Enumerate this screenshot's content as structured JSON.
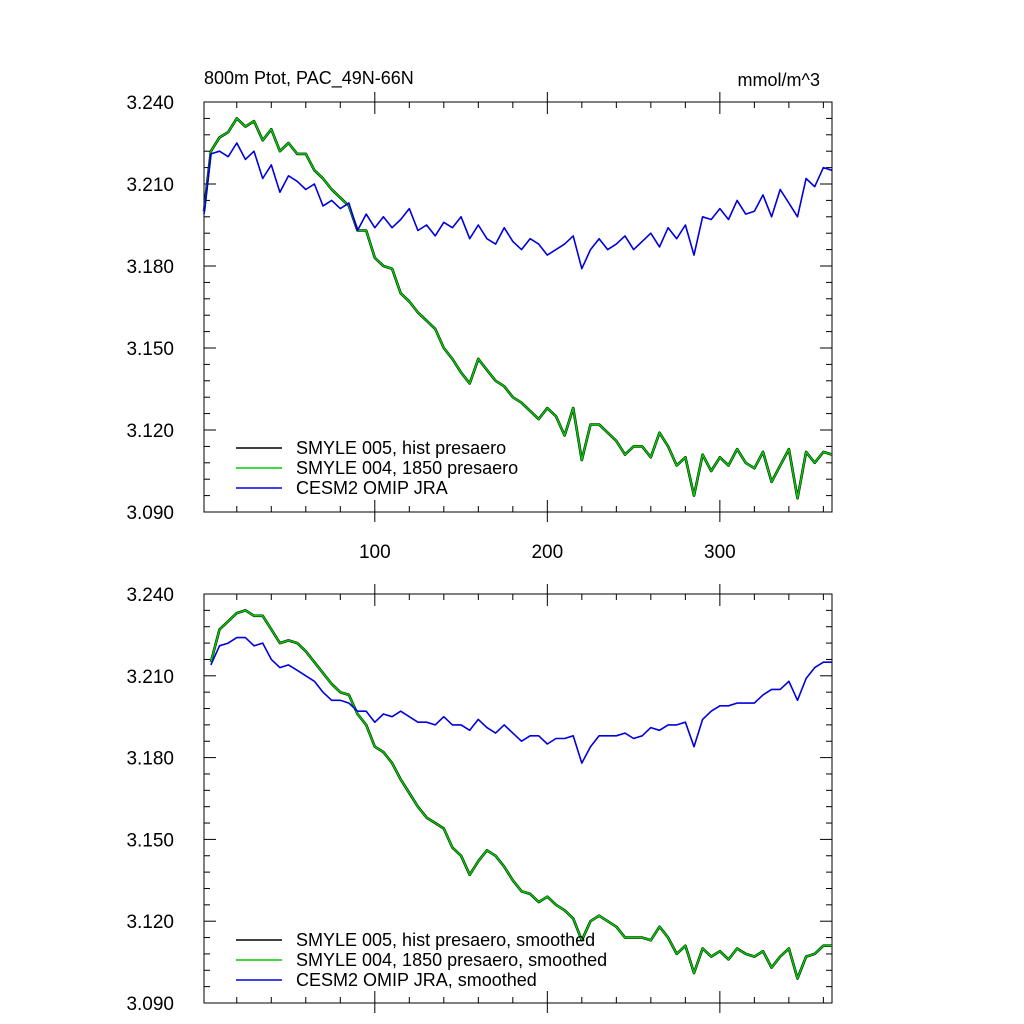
{
  "figure": {
    "title": "800m Ptot, PAC_49N-66N",
    "units": "mmol/m^3"
  },
  "chart_data": [
    {
      "type": "line",
      "name": "top-panel",
      "xlim": [
        1,
        365
      ],
      "ylim": [
        3.09,
        3.24
      ],
      "xticks": [
        100,
        200,
        300
      ],
      "yticks": [
        3.09,
        3.12,
        3.15,
        3.18,
        3.21,
        3.24
      ],
      "ytick_labels": [
        "3.090",
        "3.120",
        "3.150",
        "3.180",
        "3.210",
        "3.240"
      ],
      "xtick_labels": [
        "100",
        "200",
        "300"
      ],
      "legend_position": "bottom-left",
      "series": [
        {
          "name": "SMYLE 005, hist presaero",
          "color": "#000000",
          "x": [
            1,
            5,
            10,
            15,
            20,
            25,
            30,
            35,
            40,
            45,
            50,
            55,
            60,
            65,
            70,
            75,
            80,
            85,
            90,
            95,
            100,
            105,
            110,
            115,
            120,
            125,
            130,
            135,
            140,
            145,
            150,
            155,
            160,
            165,
            170,
            175,
            180,
            185,
            190,
            195,
            200,
            205,
            210,
            215,
            220,
            225,
            230,
            235,
            240,
            245,
            250,
            255,
            260,
            265,
            270,
            275,
            280,
            285,
            290,
            295,
            300,
            305,
            310,
            315,
            320,
            325,
            330,
            335,
            340,
            345,
            350,
            355,
            360,
            365
          ],
          "y": [
            3.2,
            3.222,
            3.227,
            3.229,
            3.234,
            3.231,
            3.233,
            3.226,
            3.23,
            3.222,
            3.225,
            3.221,
            3.221,
            3.215,
            3.212,
            3.208,
            3.205,
            3.202,
            3.193,
            3.193,
            3.183,
            3.18,
            3.179,
            3.17,
            3.167,
            3.163,
            3.16,
            3.157,
            3.15,
            3.146,
            3.141,
            3.137,
            3.146,
            3.142,
            3.138,
            3.136,
            3.132,
            3.13,
            3.127,
            3.124,
            3.128,
            3.125,
            3.118,
            3.128,
            3.109,
            3.122,
            3.122,
            3.119,
            3.116,
            3.111,
            3.114,
            3.114,
            3.11,
            3.119,
            3.114,
            3.107,
            3.11,
            3.096,
            3.111,
            3.105,
            3.11,
            3.107,
            3.113,
            3.108,
            3.106,
            3.112,
            3.101,
            3.107,
            3.113,
            3.095,
            3.112,
            3.108,
            3.112,
            3.111
          ]
        },
        {
          "name": "SMYLE 004, 1850 presaero",
          "color": "#00cc00",
          "x": [
            1,
            5,
            10,
            15,
            20,
            25,
            30,
            35,
            40,
            45,
            50,
            55,
            60,
            65,
            70,
            75,
            80,
            85,
            90,
            95,
            100,
            105,
            110,
            115,
            120,
            125,
            130,
            135,
            140,
            145,
            150,
            155,
            160,
            165,
            170,
            175,
            180,
            185,
            190,
            195,
            200,
            205,
            210,
            215,
            220,
            225,
            230,
            235,
            240,
            245,
            250,
            255,
            260,
            265,
            270,
            275,
            280,
            285,
            290,
            295,
            300,
            305,
            310,
            315,
            320,
            325,
            330,
            335,
            340,
            345,
            350,
            355,
            360,
            365
          ],
          "y": [
            3.2,
            3.222,
            3.227,
            3.229,
            3.234,
            3.231,
            3.233,
            3.226,
            3.23,
            3.222,
            3.225,
            3.221,
            3.221,
            3.215,
            3.212,
            3.208,
            3.205,
            3.202,
            3.193,
            3.193,
            3.183,
            3.18,
            3.179,
            3.17,
            3.167,
            3.163,
            3.16,
            3.157,
            3.15,
            3.146,
            3.141,
            3.137,
            3.146,
            3.142,
            3.138,
            3.136,
            3.132,
            3.13,
            3.127,
            3.124,
            3.128,
            3.125,
            3.118,
            3.128,
            3.109,
            3.122,
            3.122,
            3.119,
            3.116,
            3.111,
            3.114,
            3.114,
            3.11,
            3.119,
            3.114,
            3.107,
            3.11,
            3.096,
            3.111,
            3.105,
            3.11,
            3.107,
            3.113,
            3.108,
            3.106,
            3.112,
            3.101,
            3.107,
            3.113,
            3.095,
            3.112,
            3.108,
            3.112,
            3.111
          ]
        },
        {
          "name": "CESM2 OMIP JRA",
          "color": "#0000dd",
          "x": [
            1,
            5,
            10,
            15,
            20,
            25,
            30,
            35,
            40,
            45,
            50,
            55,
            60,
            65,
            70,
            75,
            80,
            85,
            90,
            95,
            100,
            105,
            110,
            115,
            120,
            125,
            130,
            135,
            140,
            145,
            150,
            155,
            160,
            165,
            170,
            175,
            180,
            185,
            190,
            195,
            200,
            205,
            210,
            215,
            220,
            225,
            230,
            235,
            240,
            245,
            250,
            255,
            260,
            265,
            270,
            275,
            280,
            285,
            290,
            295,
            300,
            305,
            310,
            315,
            320,
            325,
            330,
            335,
            340,
            345,
            350,
            355,
            360,
            365
          ],
          "y": [
            3.199,
            3.221,
            3.222,
            3.22,
            3.225,
            3.219,
            3.222,
            3.212,
            3.217,
            3.207,
            3.213,
            3.211,
            3.208,
            3.21,
            3.202,
            3.204,
            3.201,
            3.203,
            3.193,
            3.199,
            3.194,
            3.198,
            3.194,
            3.197,
            3.201,
            3.193,
            3.195,
            3.191,
            3.196,
            3.194,
            3.198,
            3.19,
            3.195,
            3.19,
            3.188,
            3.194,
            3.189,
            3.186,
            3.19,
            3.188,
            3.184,
            3.186,
            3.188,
            3.191,
            3.179,
            3.186,
            3.19,
            3.186,
            3.188,
            3.191,
            3.186,
            3.189,
            3.192,
            3.187,
            3.194,
            3.19,
            3.195,
            3.184,
            3.198,
            3.197,
            3.201,
            3.197,
            3.204,
            3.199,
            3.2,
            3.206,
            3.198,
            3.208,
            3.203,
            3.198,
            3.212,
            3.209,
            3.216,
            3.215
          ]
        }
      ]
    },
    {
      "type": "line",
      "name": "bottom-panel",
      "xlim": [
        1,
        365
      ],
      "ylim": [
        3.09,
        3.24
      ],
      "xticks": [
        100,
        200,
        300
      ],
      "yticks": [
        3.09,
        3.12,
        3.15,
        3.18,
        3.21,
        3.24
      ],
      "ytick_labels": [
        "3.090",
        "3.120",
        "3.150",
        "3.180",
        "3.210",
        "3.240"
      ],
      "legend_position": "bottom-left",
      "series": [
        {
          "name": "SMYLE 005, hist presaero, smoothed",
          "color": "#000000",
          "x": [
            5,
            10,
            15,
            20,
            25,
            30,
            35,
            40,
            45,
            50,
            55,
            60,
            65,
            70,
            75,
            80,
            85,
            90,
            95,
            100,
            105,
            110,
            115,
            120,
            125,
            130,
            135,
            140,
            145,
            150,
            155,
            160,
            165,
            170,
            175,
            180,
            185,
            190,
            195,
            200,
            205,
            210,
            215,
            220,
            225,
            230,
            235,
            240,
            245,
            250,
            255,
            260,
            265,
            270,
            275,
            280,
            285,
            290,
            295,
            300,
            305,
            310,
            315,
            320,
            325,
            330,
            335,
            340,
            345,
            350,
            355,
            360,
            365
          ],
          "y": [
            3.215,
            3.227,
            3.23,
            3.233,
            3.234,
            3.232,
            3.232,
            3.227,
            3.222,
            3.223,
            3.222,
            3.219,
            3.215,
            3.211,
            3.207,
            3.204,
            3.203,
            3.196,
            3.192,
            3.184,
            3.182,
            3.178,
            3.172,
            3.167,
            3.162,
            3.158,
            3.156,
            3.154,
            3.147,
            3.144,
            3.137,
            3.142,
            3.146,
            3.144,
            3.14,
            3.135,
            3.131,
            3.13,
            3.127,
            3.129,
            3.126,
            3.124,
            3.121,
            3.113,
            3.12,
            3.122,
            3.12,
            3.118,
            3.114,
            3.114,
            3.114,
            3.113,
            3.118,
            3.114,
            3.108,
            3.111,
            3.101,
            3.11,
            3.107,
            3.109,
            3.106,
            3.11,
            3.108,
            3.107,
            3.109,
            3.103,
            3.107,
            3.11,
            3.099,
            3.107,
            3.108,
            3.111,
            3.111
          ]
        },
        {
          "name": "SMYLE 004, 1850 presaero, smoothed",
          "color": "#00cc00",
          "x": [
            5,
            10,
            15,
            20,
            25,
            30,
            35,
            40,
            45,
            50,
            55,
            60,
            65,
            70,
            75,
            80,
            85,
            90,
            95,
            100,
            105,
            110,
            115,
            120,
            125,
            130,
            135,
            140,
            145,
            150,
            155,
            160,
            165,
            170,
            175,
            180,
            185,
            190,
            195,
            200,
            205,
            210,
            215,
            220,
            225,
            230,
            235,
            240,
            245,
            250,
            255,
            260,
            265,
            270,
            275,
            280,
            285,
            290,
            295,
            300,
            305,
            310,
            315,
            320,
            325,
            330,
            335,
            340,
            345,
            350,
            355,
            360,
            365
          ],
          "y": [
            3.215,
            3.227,
            3.23,
            3.233,
            3.234,
            3.232,
            3.232,
            3.227,
            3.222,
            3.223,
            3.222,
            3.219,
            3.215,
            3.211,
            3.207,
            3.204,
            3.203,
            3.196,
            3.192,
            3.184,
            3.182,
            3.178,
            3.172,
            3.167,
            3.162,
            3.158,
            3.156,
            3.154,
            3.147,
            3.144,
            3.137,
            3.142,
            3.146,
            3.144,
            3.14,
            3.135,
            3.131,
            3.13,
            3.127,
            3.129,
            3.126,
            3.124,
            3.121,
            3.113,
            3.12,
            3.122,
            3.12,
            3.118,
            3.114,
            3.114,
            3.114,
            3.113,
            3.118,
            3.114,
            3.108,
            3.111,
            3.101,
            3.11,
            3.107,
            3.109,
            3.106,
            3.11,
            3.108,
            3.107,
            3.109,
            3.103,
            3.107,
            3.11,
            3.099,
            3.107,
            3.108,
            3.111,
            3.111
          ]
        },
        {
          "name": "CESM2 OMIP JRA, smoothed",
          "color": "#0000dd",
          "x": [
            5,
            10,
            15,
            20,
            25,
            30,
            35,
            40,
            45,
            50,
            55,
            60,
            65,
            70,
            75,
            80,
            85,
            90,
            95,
            100,
            105,
            110,
            115,
            120,
            125,
            130,
            135,
            140,
            145,
            150,
            155,
            160,
            165,
            170,
            175,
            180,
            185,
            190,
            195,
            200,
            205,
            210,
            215,
            220,
            225,
            230,
            235,
            240,
            245,
            250,
            255,
            260,
            265,
            270,
            275,
            280,
            285,
            290,
            295,
            300,
            305,
            310,
            315,
            320,
            325,
            330,
            335,
            340,
            345,
            350,
            355,
            360,
            365
          ],
          "y": [
            3.214,
            3.221,
            3.222,
            3.224,
            3.224,
            3.221,
            3.222,
            3.216,
            3.213,
            3.214,
            3.212,
            3.21,
            3.208,
            3.204,
            3.201,
            3.201,
            3.2,
            3.197,
            3.197,
            3.193,
            3.196,
            3.195,
            3.197,
            3.195,
            3.193,
            3.193,
            3.192,
            3.195,
            3.192,
            3.192,
            3.19,
            3.194,
            3.191,
            3.189,
            3.192,
            3.189,
            3.186,
            3.188,
            3.188,
            3.185,
            3.187,
            3.187,
            3.188,
            3.178,
            3.184,
            3.188,
            3.188,
            3.188,
            3.189,
            3.187,
            3.188,
            3.191,
            3.19,
            3.192,
            3.192,
            3.193,
            3.184,
            3.194,
            3.197,
            3.199,
            3.199,
            3.2,
            3.2,
            3.2,
            3.203,
            3.205,
            3.205,
            3.208,
            3.201,
            3.209,
            3.213,
            3.215,
            3.215
          ]
        }
      ]
    }
  ]
}
